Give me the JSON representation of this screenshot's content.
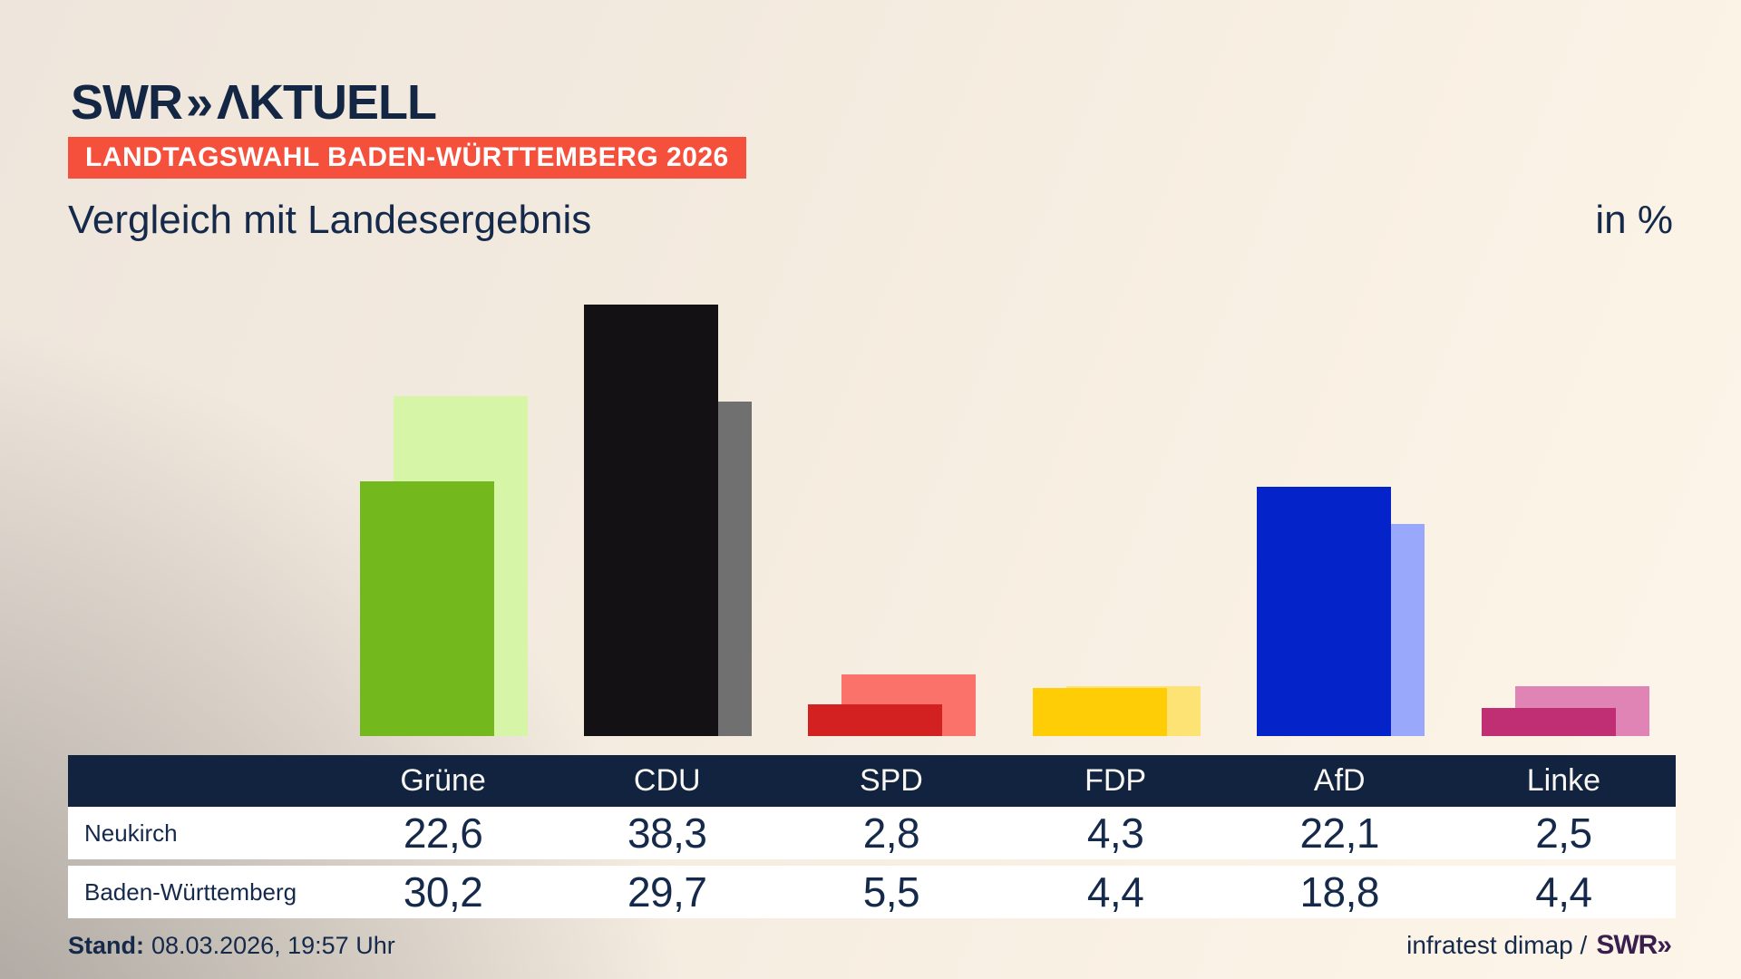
{
  "brand": {
    "swr": "SWR",
    "chevrons": "»",
    "product": "ΛKTUELL"
  },
  "badge": {
    "label": "LANDTAGSWAHL BADEN-WÜRTTEMBERG 2026",
    "background": "#f4503c",
    "text_color": "#ffffff"
  },
  "title": "Vergleich mit Landesergebnis",
  "unit_label": "in %",
  "chart_data": {
    "type": "bar",
    "title": "Vergleich mit Landesergebnis",
    "unit": "in %",
    "categories": [
      "Grüne",
      "CDU",
      "SPD",
      "FDP",
      "AfD",
      "Linke"
    ],
    "series": [
      {
        "name": "Neukirch",
        "values": [
          22.6,
          38.3,
          2.8,
          4.3,
          22.1,
          2.5
        ]
      },
      {
        "name": "Baden-Württemberg",
        "values": [
          30.2,
          29.7,
          5.5,
          4.4,
          18.8,
          4.4
        ]
      }
    ],
    "colors": {
      "neukirch": [
        "#73b91e",
        "#131114",
        "#d32020",
        "#fecd06",
        "#0423c9",
        "#c02e74"
      ],
      "baden_wuerttemberg": [
        "#d6f5a7",
        "#717071",
        "#fb726b",
        "#fde274",
        "#99a8fb",
        "#df84b4"
      ]
    },
    "ylim": [
      0,
      40
    ],
    "grid": false,
    "legend_position": "table-below-chart"
  },
  "table": {
    "header_bg": "#12233f",
    "header": [
      "",
      "Grüne",
      "CDU",
      "SPD",
      "FDP",
      "AfD",
      "Linke"
    ],
    "rows": [
      {
        "label": "Neukirch",
        "values": [
          "22,6",
          "38,3",
          "2,8",
          "4,3",
          "22,1",
          "2,5"
        ]
      },
      {
        "label": "Baden-Württemberg",
        "values": [
          "30,2",
          "29,7",
          "5,5",
          "4,4",
          "18,8",
          "4,4"
        ]
      }
    ]
  },
  "footer": {
    "stand_label": "Stand:",
    "stand_value": "08.03.2026, 19:57 Uhr",
    "source_text": "infratest dimap /",
    "source_brand": "SWR»",
    "source_brand_color": "#3a1f4e"
  }
}
